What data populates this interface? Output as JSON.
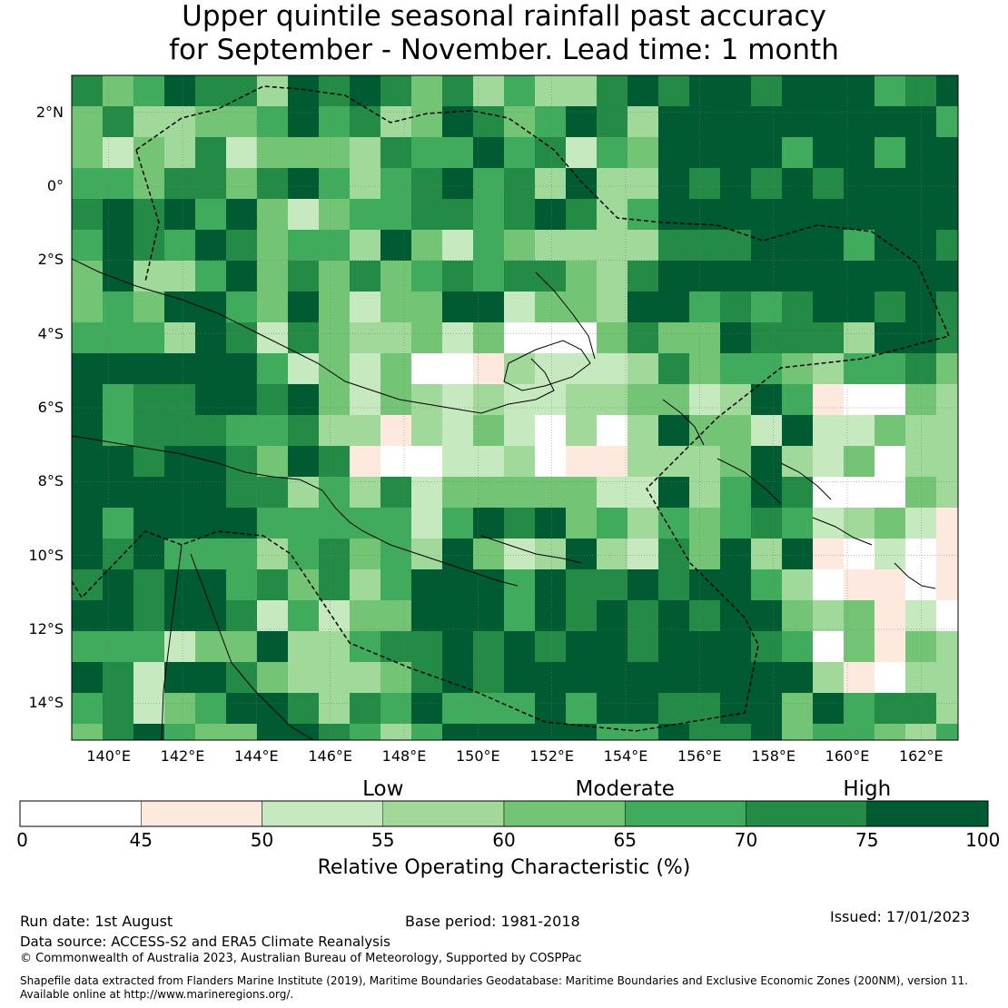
{
  "title_line1": "Upper quintile seasonal rainfall past accuracy",
  "title_line2": "for September - November. Lead time: 1 month",
  "map": {
    "lon_min": 139,
    "lon_max": 163,
    "lat_min": -15,
    "lat_max": 3,
    "lon_ticks": [
      "140°E",
      "142°E",
      "144°E",
      "146°E",
      "148°E",
      "150°E",
      "152°E",
      "154°E",
      "156°E",
      "158°E",
      "160°E",
      "162°E"
    ],
    "lat_ticks": [
      "2°N",
      "0°",
      "2°S",
      "4°S",
      "6°S",
      "8°S",
      "10°S",
      "12°S",
      "14°S"
    ]
  },
  "colorbar": {
    "bounds": [
      0,
      45,
      50,
      55,
      60,
      65,
      70,
      75,
      100
    ],
    "tick_labels": [
      "0",
      "45",
      "50",
      "55",
      "60",
      "65",
      "70",
      "75",
      "100"
    ],
    "colors": [
      "#ffffff",
      "#fee9df",
      "#c7e9c0",
      "#a1d99b",
      "#74c476",
      "#41ab5d",
      "#238b45",
      "#005a32"
    ],
    "category_labels": [
      "Low",
      "Moderate",
      "High"
    ],
    "label": "Relative Operating Characteristic (%)"
  },
  "footer": {
    "run_date": "Run date: 1st August",
    "base_period": "Base period: 1981-2018",
    "issued": "Issued: 17/01/2023",
    "data_source": "Data source: ACCESS-S2 and ERA5 Climate Reanalysis",
    "copyright": "© Commonwealth of Australia 2023, Australian Bureau of Meteorology, Supported by COSPPac",
    "shapefile_line1": "Shapefile data extracted from Flanders Marine Institute (2019), Maritime Boundaries Geodatabase: Maritime Boundaries and Exclusive Economic Zones (200NM), version 11.",
    "shapefile_line2": "Available online at http://www.marineregions.org/."
  }
}
